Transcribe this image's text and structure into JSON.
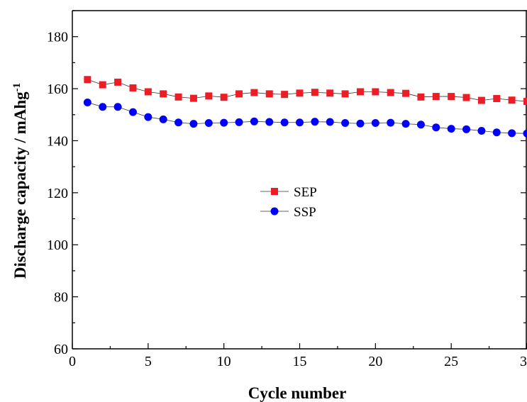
{
  "chart_data": {
    "type": "line",
    "title": "",
    "xlabel": "Cycle number",
    "ylabel": "Discharge capacity / mAhg",
    "ylabel_superscript": "-1",
    "xlim": [
      0,
      30
    ],
    "ylim": [
      60,
      190
    ],
    "x_ticks": [
      0,
      5,
      10,
      15,
      20,
      25,
      30
    ],
    "y_ticks": [
      60,
      80,
      100,
      120,
      140,
      160,
      180
    ],
    "grid": false,
    "legend_position": "center",
    "x": [
      1,
      2,
      3,
      4,
      5,
      6,
      7,
      8,
      9,
      10,
      11,
      12,
      13,
      14,
      15,
      16,
      17,
      18,
      19,
      20,
      21,
      22,
      23,
      24,
      25,
      26,
      27,
      28,
      29,
      30
    ],
    "series": [
      {
        "name": "SEP",
        "color": "#ee1c24",
        "marker": "square",
        "values": [
          163.5,
          161.5,
          162.5,
          160.3,
          158.8,
          158.0,
          156.8,
          156.3,
          157.2,
          156.7,
          158.0,
          158.5,
          158.0,
          157.8,
          158.3,
          158.6,
          158.3,
          158.0,
          158.8,
          158.8,
          158.5,
          158.2,
          156.8,
          157.0,
          157.0,
          156.6,
          155.5,
          156.2,
          155.6,
          155.1
        ]
      },
      {
        "name": "SSP",
        "color": "#0000ff",
        "marker": "circle",
        "values": [
          154.7,
          153.0,
          153.0,
          151.0,
          149.1,
          148.2,
          147.0,
          146.5,
          146.8,
          146.9,
          147.1,
          147.4,
          147.2,
          147.0,
          147.0,
          147.3,
          147.2,
          146.8,
          146.6,
          146.8,
          146.9,
          146.5,
          146.2,
          145.1,
          144.6,
          144.4,
          143.8,
          143.2,
          142.9,
          142.8
        ]
      }
    ]
  }
}
